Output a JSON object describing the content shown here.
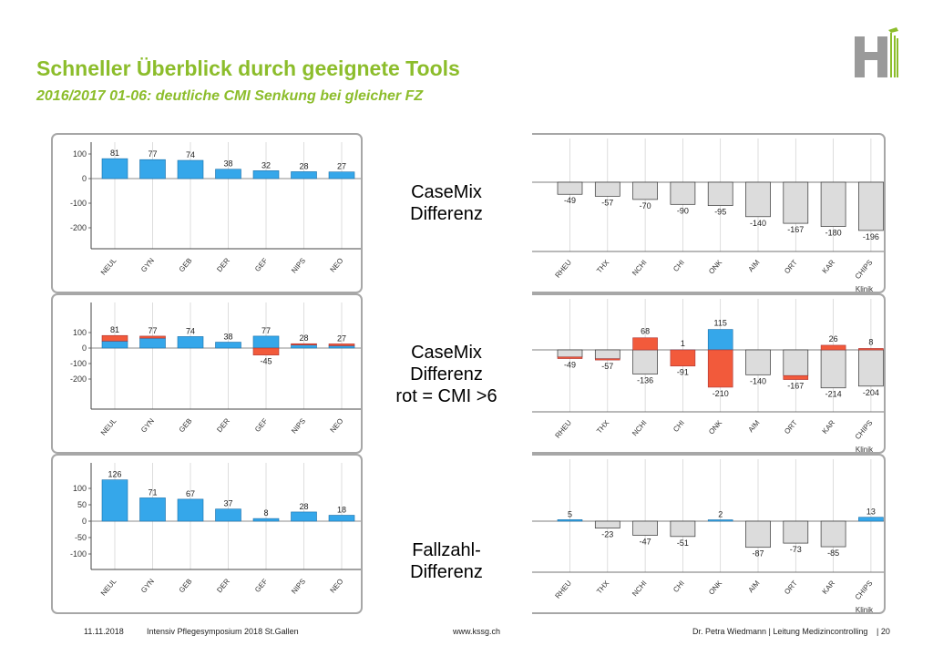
{
  "header": {
    "title": "Schneller Überblick durch geeignete Tools",
    "subtitle": "2016/2017 01-06: deutliche CMI Senkung bei gleicher FZ"
  },
  "labels": {
    "casemix": [
      "CaseMix",
      "Differenz"
    ],
    "casemix_rot": [
      "CaseMix",
      "Differenz",
      "rot = CMI >6"
    ],
    "fallzahl": [
      "Fallzahl-",
      "Differenz"
    ]
  },
  "footer": {
    "date": "11.11.2018",
    "event": "Intensiv Pflegesymposium 2018 St.Gallen",
    "url": "www.kssg.ch",
    "author": "Dr. Petra Wiedmann | Leitung Medizincontrolling",
    "page": "| 20"
  },
  "colors": {
    "accent": "#8cbd2b",
    "blue": "#35a7ea",
    "red": "#f25a3b",
    "gray": "#dcdcdc"
  },
  "chart_data": [
    {
      "type": "bar",
      "id": "left-1",
      "categories": [
        "NEUL",
        "GYN",
        "GEB",
        "DER",
        "GEF",
        "NIPS",
        "NEO"
      ],
      "values": [
        81,
        77,
        74,
        38,
        32,
        28,
        27
      ],
      "yticks": [
        "100",
        "0",
        "-100",
        "-200"
      ],
      "ylim": [
        -270,
        130
      ]
    },
    {
      "type": "bar",
      "id": "right-1",
      "categories": [
        "RHEU",
        "THX",
        "NCHI",
        "CHI",
        "ONK",
        "AIM",
        "ORT",
        "KAR",
        "CHIPS"
      ],
      "values": [
        -49,
        -57,
        -70,
        -90,
        -95,
        -140,
        -167,
        -180,
        -196
      ],
      "xlabel": "Klinik"
    },
    {
      "type": "bar",
      "id": "left-2",
      "stacked": true,
      "categories": [
        "NEUL",
        "GYN",
        "GEB",
        "DER",
        "GEF",
        "NIPS",
        "NEO"
      ],
      "series": [
        {
          "values": [
            45,
            64,
            74,
            38,
            77,
            20,
            15
          ]
        },
        {
          "values": [
            36,
            13,
            0,
            0,
            -45,
            8,
            12
          ]
        }
      ],
      "data_labels": [
        "81",
        "77",
        "74",
        "38",
        "77",
        "28",
        "27"
      ],
      "extra_labels": [
        "",
        "",
        "",
        "",
        "-45",
        "",
        ""
      ],
      "yticks": [
        "100",
        "0",
        "-100",
        "-200"
      ],
      "ylim": [
        -260,
        130
      ]
    },
    {
      "type": "bar",
      "id": "right-2",
      "stacked": true,
      "categories": [
        "RHEU",
        "THX",
        "NCHI",
        "CHI",
        "ONK",
        "AIM",
        "ORT",
        "KAR",
        "CHIPS"
      ],
      "series": [
        {
          "values": [
            -40,
            -50,
            -136,
            1,
            115,
            -140,
            -145,
            0,
            0
          ]
        },
        {
          "values": [
            -9,
            -7,
            68,
            -91,
            -210,
            0,
            -22,
            26,
            8
          ]
        },
        {
          "values": [
            0,
            0,
            0,
            0,
            0,
            0,
            0,
            -214,
            -204
          ]
        }
      ],
      "top_labels": [
        "",
        "",
        "68",
        "1",
        "115",
        "",
        "",
        "26",
        "8"
      ],
      "bottom_labels": [
        "-49",
        "-57",
        "-136",
        "-91",
        "-210",
        "-140",
        "-167",
        "-214",
        "-204"
      ],
      "xlabel": "Klinik"
    },
    {
      "type": "bar",
      "id": "left-3",
      "categories": [
        "NEUL",
        "GYN",
        "GEB",
        "DER",
        "GEF",
        "NIPS",
        "NEO"
      ],
      "values": [
        126,
        71,
        67,
        37,
        8,
        28,
        18
      ],
      "yticks": [
        "100",
        "50",
        "0",
        "-50",
        "-100"
      ],
      "ylim": [
        -150,
        150
      ]
    },
    {
      "type": "bar",
      "id": "right-3",
      "categories": [
        "RHEU",
        "THX",
        "NCHI",
        "CHI",
        "ONK",
        "AIM",
        "ORT",
        "KAR",
        "CHIPS"
      ],
      "values": [
        5,
        -23,
        -47,
        -51,
        2,
        -87,
        -73,
        -85,
        13
      ],
      "xlabel": "Klinik"
    }
  ]
}
